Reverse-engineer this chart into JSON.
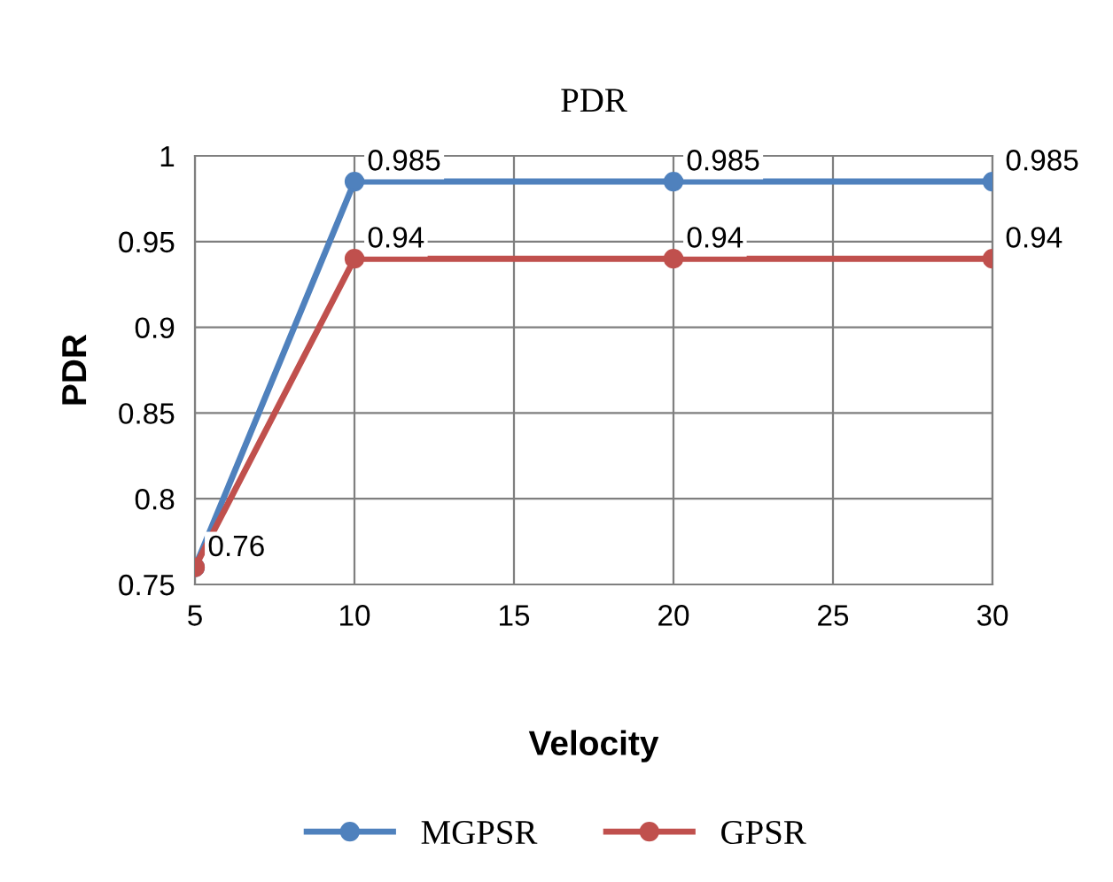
{
  "chart_data": {
    "type": "line",
    "title": "PDR",
    "xlabel": "Velocity",
    "ylabel": "PDR",
    "x": [
      5,
      10,
      20,
      30
    ],
    "series": [
      {
        "name": "MGPSR",
        "color": "#4f81bd",
        "values": [
          0.76,
          0.985,
          0.985,
          0.985
        ],
        "value_labels": [
          null,
          "0.985",
          "0.985",
          "0.985"
        ]
      },
      {
        "name": "GPSR",
        "color": "#c0504d",
        "values": [
          0.76,
          0.94,
          0.94,
          0.94
        ],
        "value_labels": [
          "0.76",
          "0.94",
          "0.94",
          "0.94"
        ]
      }
    ],
    "xlim": [
      5,
      30
    ],
    "xticks": [
      5,
      10,
      15,
      20,
      25,
      30
    ],
    "ylim": [
      0.75,
      1
    ],
    "yticks": [
      {
        "value": 0.75,
        "label": "0.75"
      },
      {
        "value": 0.8,
        "label": "0.8"
      },
      {
        "value": 0.85,
        "label": "0.85"
      },
      {
        "value": 0.9,
        "label": "0.9"
      },
      {
        "value": 0.95,
        "label": "0.95"
      },
      {
        "value": 1,
        "label": "1"
      }
    ],
    "grid": true,
    "legend": "bottom",
    "marker": "circle",
    "line_style": "solid"
  }
}
